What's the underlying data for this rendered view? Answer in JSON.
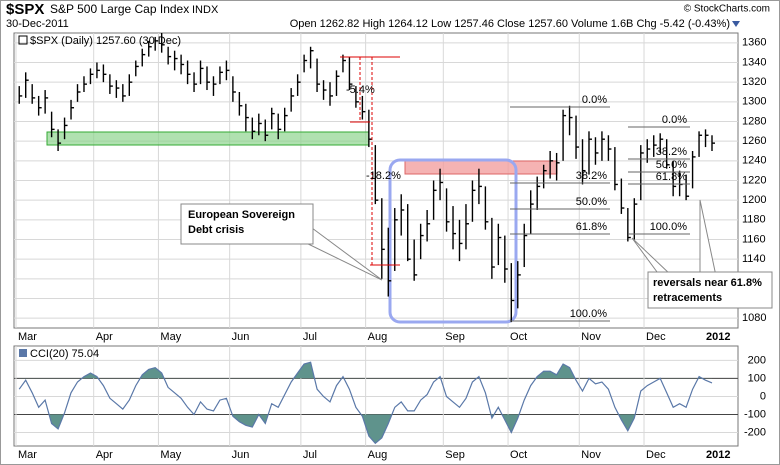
{
  "header": {
    "symbol": "$SPX",
    "name": "S&P 500 Large Cap Index",
    "exchange": "INDX",
    "date": "30-Dec-2011",
    "quote": "Open 1262.82  High 1264.12  Low 1257.46  Close 1257.60  Volume 1.6B  Chg -5.42 (-0.43%)",
    "copyright": "© StockCharts.com"
  },
  "chart_data": [
    {
      "type": "ohlc",
      "legend": "$SPX (Daily) 1257.60 (30 Dec)",
      "color": "#000000",
      "categories": [
        "Mar",
        null,
        null,
        null,
        null,
        null,
        null,
        null,
        null,
        null,
        null,
        null,
        "Apr",
        null,
        null,
        null,
        null,
        null,
        null,
        null,
        null,
        null,
        "May",
        null,
        null,
        null,
        null,
        null,
        null,
        null,
        null,
        null,
        null,
        "Jun",
        null,
        null,
        null,
        null,
        null,
        null,
        null,
        null,
        null,
        null,
        "Jul",
        null,
        null,
        null,
        null,
        null,
        null,
        null,
        null,
        null,
        "Aug",
        null,
        null,
        null,
        null,
        null,
        null,
        null,
        null,
        null,
        null,
        null,
        "Sep",
        null,
        null,
        null,
        null,
        null,
        null,
        null,
        null,
        null,
        "Oct",
        null,
        null,
        null,
        null,
        null,
        null,
        null,
        null,
        null,
        null,
        "Nov",
        null,
        null,
        null,
        null,
        null,
        null,
        null,
        null,
        null,
        "Dec",
        null,
        null,
        null,
        null,
        null,
        null,
        null,
        null,
        null,
        null
      ],
      "x_end_label": "2012",
      "high": [
        1316,
        1330,
        1318,
        1306,
        1312,
        1290,
        1272,
        1284,
        1302,
        1318,
        1326,
        1334,
        1340,
        1338,
        1328,
        1322,
        1318,
        1328,
        1342,
        1354,
        1362,
        1366,
        1370,
        1356,
        1352,
        1348,
        1342,
        1330,
        1342,
        1336,
        1326,
        1336,
        1342,
        1326,
        1310,
        1298,
        1284,
        1288,
        1282,
        1294,
        1288,
        1294,
        1314,
        1328,
        1348,
        1356,
        1344,
        1322,
        1320,
        1332,
        1348,
        1346,
        1316,
        1306,
        1292,
        1256,
        1202,
        1172,
        1192,
        1206,
        1196,
        1160,
        1176,
        1190,
        1220,
        1232,
        1212,
        1194,
        1180,
        1196,
        1220,
        1232,
        1214,
        1182,
        1176,
        1164,
        1136,
        1138,
        1176,
        1210,
        1224,
        1236,
        1250,
        1248,
        1292,
        1296,
        1286,
        1262,
        1270,
        1264,
        1270,
        1266,
        1254,
        1222,
        1192,
        1202,
        1256,
        1262,
        1266,
        1268,
        1262,
        1240,
        1230,
        1226,
        1250,
        1270,
        1272,
        1266
      ],
      "low": [
        1298,
        1304,
        1298,
        1286,
        1288,
        1264,
        1250,
        1262,
        1282,
        1300,
        1310,
        1318,
        1324,
        1320,
        1308,
        1304,
        1300,
        1306,
        1326,
        1336,
        1346,
        1352,
        1350,
        1338,
        1332,
        1328,
        1318,
        1310,
        1318,
        1312,
        1306,
        1318,
        1322,
        1300,
        1286,
        1270,
        1262,
        1266,
        1260,
        1272,
        1262,
        1270,
        1290,
        1306,
        1330,
        1334,
        1310,
        1302,
        1296,
        1306,
        1330,
        1312,
        1294,
        1282,
        1254,
        1196,
        1120,
        1102,
        1128,
        1164,
        1138,
        1118,
        1140,
        1158,
        1180,
        1200,
        1168,
        1150,
        1138,
        1150,
        1178,
        1196,
        1170,
        1120,
        1134,
        1116,
        1076,
        1090,
        1132,
        1166,
        1190,
        1212,
        1222,
        1220,
        1240,
        1266,
        1242,
        1216,
        1226,
        1236,
        1240,
        1240,
        1210,
        1186,
        1158,
        1160,
        1200,
        1238,
        1244,
        1248,
        1232,
        1204,
        1204,
        1200,
        1212,
        1244,
        1254,
        1250
      ],
      "close": [
        1306,
        1322,
        1304,
        1294,
        1304,
        1272,
        1258,
        1276,
        1294,
        1310,
        1318,
        1328,
        1332,
        1328,
        1316,
        1314,
        1306,
        1320,
        1336,
        1348,
        1356,
        1362,
        1358,
        1346,
        1344,
        1338,
        1328,
        1318,
        1334,
        1320,
        1318,
        1330,
        1332,
        1310,
        1296,
        1284,
        1270,
        1278,
        1266,
        1288,
        1272,
        1286,
        1306,
        1320,
        1342,
        1352,
        1318,
        1312,
        1306,
        1326,
        1342,
        1318,
        1300,
        1290,
        1262,
        1200,
        1150,
        1118,
        1180,
        1190,
        1140,
        1124,
        1164,
        1176,
        1210,
        1218,
        1178,
        1166,
        1156,
        1176,
        1210,
        1214,
        1178,
        1132,
        1162,
        1130,
        1098,
        1124,
        1164,
        1196,
        1214,
        1230,
        1240,
        1238,
        1286,
        1284,
        1254,
        1230,
        1262,
        1248,
        1262,
        1252,
        1216,
        1192,
        1162,
        1196,
        1248,
        1252,
        1256,
        1262,
        1236,
        1214,
        1216,
        1204,
        1244,
        1266,
        1266,
        1258
      ],
      "ylim": [
        1070,
        1370
      ],
      "yticks": [
        1080,
        1100,
        1120,
        1140,
        1160,
        1180,
        1200,
        1220,
        1240,
        1260,
        1280,
        1300,
        1320,
        1340,
        1360
      ],
      "annotations": {
        "drop1": "-5.4%",
        "drop2": "-18.2%",
        "note1": "European Sovereign",
        "note1b": "Debt crisis",
        "note2": "reversals near 61.8%",
        "note2b": "retracements",
        "fib_left": [
          "0.0%",
          "38.2%",
          "50.0%",
          "61.8%",
          "100.0%"
        ],
        "fib_right": [
          "0.0%",
          "38.2%",
          "50.0%",
          "61.8%",
          "100.0%"
        ]
      }
    },
    {
      "type": "line",
      "legend": "CCI(20) 75.04",
      "color": "#5a78a8",
      "fill": "#5f938c",
      "values": [
        40,
        90,
        20,
        -60,
        -20,
        -150,
        -180,
        -90,
        20,
        80,
        110,
        130,
        110,
        60,
        -10,
        -40,
        -70,
        -20,
        60,
        120,
        150,
        160,
        130,
        50,
        20,
        -10,
        -60,
        -100,
        -30,
        -70,
        -80,
        -20,
        -10,
        -110,
        -140,
        -160,
        -170,
        -100,
        -150,
        -40,
        -60,
        10,
        80,
        130,
        180,
        190,
        40,
        0,
        -30,
        60,
        110,
        40,
        -60,
        -110,
        -220,
        -260,
        -230,
        -150,
        -60,
        -30,
        -80,
        -80,
        -20,
        10,
        80,
        110,
        0,
        -30,
        -60,
        -10,
        80,
        110,
        20,
        -120,
        -60,
        -130,
        -200,
        -120,
        -20,
        60,
        110,
        140,
        140,
        120,
        180,
        160,
        90,
        30,
        100,
        70,
        80,
        40,
        -60,
        -130,
        -190,
        -120,
        30,
        60,
        80,
        100,
        20,
        -60,
        -40,
        -60,
        40,
        110,
        90,
        75
      ],
      "ylim": [
        -275,
        280
      ],
      "yticks": [
        -200,
        -100,
        0,
        100,
        200
      ],
      "levels": [
        100,
        -100
      ]
    }
  ]
}
